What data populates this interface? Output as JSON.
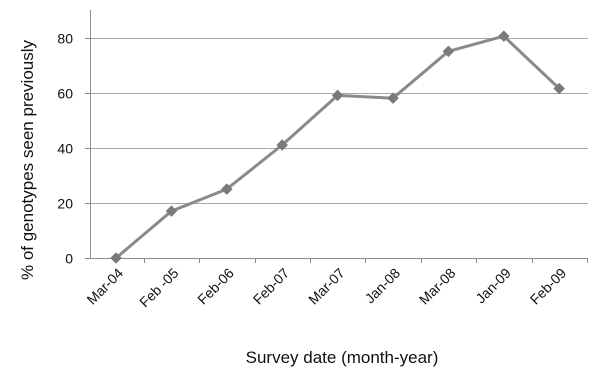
{
  "chart_data": {
    "type": "line",
    "title": "",
    "xlabel": "Survey date (month-year)",
    "ylabel": "% of genotypes seen previously",
    "categories": [
      "Mar-04",
      "Feb -05",
      "Feb-06",
      "Feb-07",
      "Mar-07",
      "Jan-08",
      "Mar-08",
      "Jan-09",
      "Feb-09"
    ],
    "series": [
      {
        "values": [
          0,
          17,
          25,
          41,
          59,
          58,
          75,
          80.5,
          61.5
        ]
      }
    ],
    "ylim": [
      0,
      90
    ],
    "yticks": [
      "0",
      "20",
      "40",
      "60",
      "80"
    ],
    "grid": true,
    "legend": "none",
    "colors": {
      "line": "#8a8a8a",
      "marker": "#7a7a7a",
      "grid": "#a6a6a6",
      "axis": "#8c8c8c"
    },
    "marker": "diamond"
  }
}
